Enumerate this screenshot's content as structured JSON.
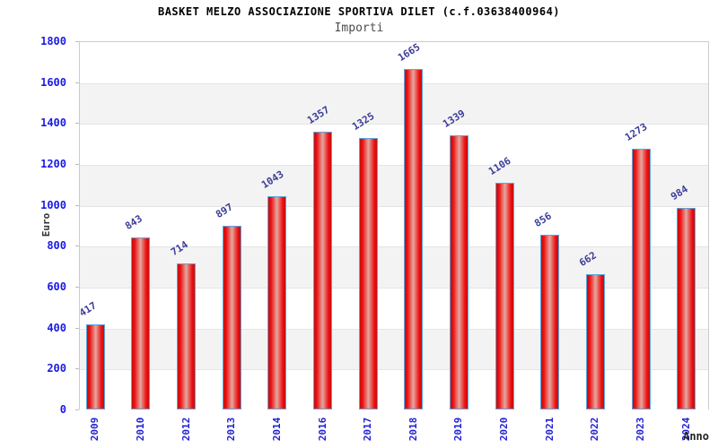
{
  "title": "BASKET MELZO ASSOCIAZIONE SPORTIVA DILET (c.f.03638400964)",
  "subtitle": "Importi",
  "chart_data": {
    "type": "bar",
    "title": "BASKET MELZO ASSOCIAZIONE SPORTIVA DILET (c.f.03638400964)",
    "subtitle": "Importi",
    "xlabel": "Anno",
    "ylabel": "Euro",
    "categories": [
      "2009",
      "2010",
      "2012",
      "2013",
      "2014",
      "2016",
      "2017",
      "2018",
      "2019",
      "2020",
      "2021",
      "2022",
      "2023",
      "2024"
    ],
    "values": [
      417,
      843,
      714,
      897,
      1043,
      1357,
      1325,
      1665,
      1339,
      1106,
      856,
      662,
      1273,
      984
    ],
    "ylim": [
      0,
      1800
    ],
    "ytick_step": 200,
    "yticks": [
      "0",
      "200",
      "400",
      "600",
      "800",
      "1000",
      "1200",
      "1400",
      "1600",
      "1800"
    ],
    "grid": "alternating-horizontal-bands",
    "legend": "none",
    "value_labels": "rotated-above-bars",
    "colors": {
      "bar_main": "#ee1111",
      "bar_dark": "#c40d0d",
      "bar_highlight": "#e4a8a0",
      "bar_border": "#5aa7dd",
      "band_gray": "#f3f3f3",
      "gridline": "#e4e4e4",
      "plot_border": "#cccccc",
      "tick_label_blue": "#1a1ae6",
      "value_label_navy": "#3c3c99",
      "axis_title": "#333333",
      "title_color": "#000000",
      "subtitle_color": "#4d4d4d"
    }
  }
}
